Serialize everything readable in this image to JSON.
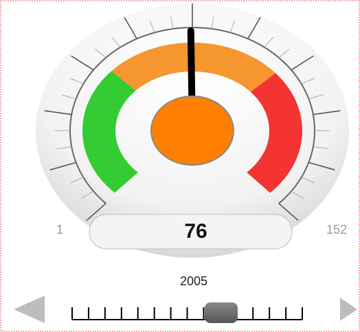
{
  "chart_data": {
    "type": "gauge",
    "value": 76,
    "range": [
      1,
      152
    ],
    "bands": [
      {
        "from": 1,
        "to": 50,
        "color": "#33cc33"
      },
      {
        "from": 50,
        "to": 104,
        "color": "#f5962f"
      },
      {
        "from": 104,
        "to": 152,
        "color": "#f43333"
      }
    ],
    "needle_color": "#000000",
    "hub_color": "#ff8000",
    "year": "2005"
  }
}
